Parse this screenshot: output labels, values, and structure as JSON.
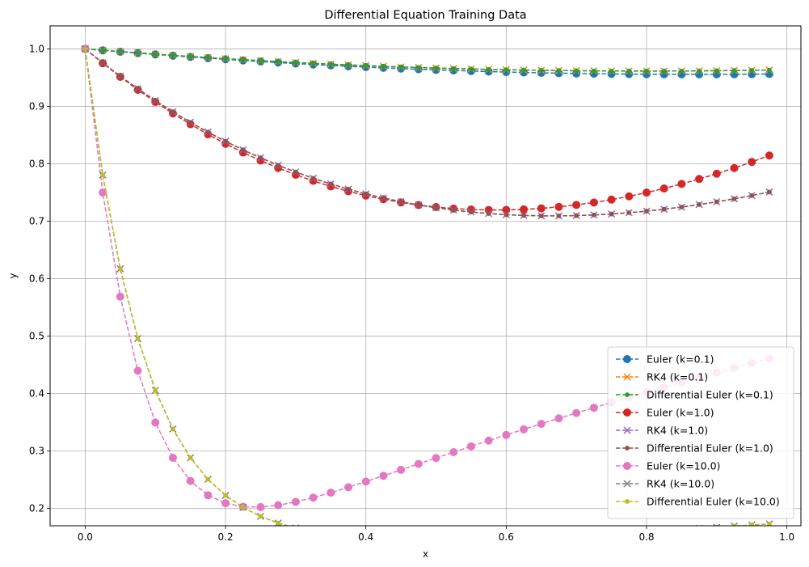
{
  "chart_data": {
    "type": "line",
    "title": "Differential Equation Training Data",
    "xlabel": "x",
    "ylabel": "y",
    "xlim": [
      -0.05,
      1.02
    ],
    "ylim": [
      0.17,
      1.04
    ],
    "xticks": [
      0.0,
      0.2,
      0.4,
      0.6,
      0.8,
      1.0
    ],
    "xtick_labels": [
      "0.0",
      "0.2",
      "0.4",
      "0.6",
      "0.8",
      "1.0"
    ],
    "yticks": [
      0.2,
      0.3,
      0.4,
      0.5,
      0.6,
      0.7,
      0.8,
      0.9,
      1.0
    ],
    "ytick_labels": [
      "0.2",
      "0.3",
      "0.4",
      "0.5",
      "0.6",
      "0.7",
      "0.8",
      "0.9",
      "1.0"
    ],
    "grid": true,
    "legend_position": "bottom-right",
    "x": [
      0.0,
      0.025,
      0.05,
      0.075,
      0.1,
      0.125,
      0.15,
      0.175,
      0.2,
      0.225,
      0.25,
      0.275,
      0.3,
      0.325,
      0.35,
      0.375,
      0.4,
      0.425,
      0.45,
      0.475,
      0.5,
      0.525,
      0.55,
      0.575,
      0.6,
      0.625,
      0.65,
      0.675,
      0.7,
      0.725,
      0.75,
      0.775,
      0.8,
      0.825,
      0.85,
      0.875,
      0.9,
      0.925,
      0.95,
      0.975
    ],
    "series": [
      {
        "name": "Euler (k=0.1)",
        "color": "#1f77b4",
        "marker": "circle",
        "values": [
          1.0,
          0.9975,
          0.995,
          0.9926,
          0.9903,
          0.9881,
          0.9859,
          0.9838,
          0.9818,
          0.9798,
          0.978,
          0.9762,
          0.9744,
          0.9728,
          0.9712,
          0.9697,
          0.9683,
          0.967,
          0.9657,
          0.9645,
          0.9634,
          0.9624,
          0.9614,
          0.9605,
          0.9597,
          0.959,
          0.9583,
          0.9577,
          0.9572,
          0.9568,
          0.9564,
          0.9561,
          0.9559,
          0.9558,
          0.9557,
          0.9557,
          0.9557,
          0.9558,
          0.956,
          0.9562
        ]
      },
      {
        "name": "RK4 (k=0.1)",
        "color": "#ff7f0e",
        "marker": "x",
        "values": [
          1.0,
          0.9976,
          0.9953,
          0.9931,
          0.9909,
          0.9888,
          0.9868,
          0.9848,
          0.983,
          0.9812,
          0.9795,
          0.9778,
          0.9763,
          0.9748,
          0.9734,
          0.9721,
          0.9709,
          0.9697,
          0.9686,
          0.9676,
          0.9667,
          0.9658,
          0.965,
          0.9643,
          0.9637,
          0.9632,
          0.9627,
          0.9623,
          0.962,
          0.9617,
          0.9615,
          0.9614,
          0.9614,
          0.9614,
          0.9615,
          0.9617,
          0.962,
          0.9623,
          0.9627,
          0.9631
        ]
      },
      {
        "name": "Differential Euler (k=0.1)",
        "color": "#2ca02c",
        "marker": "dot",
        "values": [
          1.0,
          0.9976,
          0.9953,
          0.9931,
          0.9909,
          0.9888,
          0.9868,
          0.9848,
          0.983,
          0.9812,
          0.9795,
          0.9778,
          0.9763,
          0.9748,
          0.9734,
          0.9721,
          0.9709,
          0.9697,
          0.9686,
          0.9676,
          0.9667,
          0.9658,
          0.965,
          0.9643,
          0.9637,
          0.9632,
          0.9627,
          0.9623,
          0.962,
          0.9617,
          0.9615,
          0.9614,
          0.9614,
          0.9614,
          0.9615,
          0.9617,
          0.962,
          0.9623,
          0.9627,
          0.9631
        ]
      },
      {
        "name": "Euler (k=1.0)",
        "color": "#d62728",
        "marker": "circle",
        "values": [
          1.0,
          0.975,
          0.9513,
          0.9288,
          0.9076,
          0.8876,
          0.8688,
          0.8512,
          0.8349,
          0.8196,
          0.8056,
          0.7927,
          0.7809,
          0.7702,
          0.7606,
          0.7521,
          0.7446,
          0.7382,
          0.7327,
          0.7282,
          0.7247,
          0.7221,
          0.7204,
          0.7196,
          0.7197,
          0.7206,
          0.7224,
          0.725,
          0.7284,
          0.7326,
          0.7376,
          0.7433,
          0.7498,
          0.757,
          0.7649,
          0.7735,
          0.7827,
          0.7926,
          0.8032,
          0.8144
        ]
      },
      {
        "name": "RK4 (k=1.0)",
        "color": "#9467bd",
        "marker": "x",
        "values": [
          1.0,
          0.9756,
          0.9524,
          0.9306,
          0.9099,
          0.8905,
          0.8722,
          0.8551,
          0.8391,
          0.8242,
          0.8104,
          0.7975,
          0.7857,
          0.7748,
          0.7649,
          0.7559,
          0.7477,
          0.7405,
          0.734,
          0.7284,
          0.7235,
          0.7194,
          0.716,
          0.7134,
          0.7114,
          0.7101,
          0.7094,
          0.7093,
          0.7098,
          0.7109,
          0.7126,
          0.7148,
          0.7176,
          0.7209,
          0.7247,
          0.729,
          0.7338,
          0.739,
          0.7447,
          0.7508
        ]
      },
      {
        "name": "Differential Euler (k=1.0)",
        "color": "#8c564b",
        "marker": "dot",
        "values": [
          1.0,
          0.9756,
          0.9524,
          0.9306,
          0.9099,
          0.8905,
          0.8722,
          0.8551,
          0.8391,
          0.8242,
          0.8104,
          0.7975,
          0.7857,
          0.7748,
          0.7649,
          0.7559,
          0.7477,
          0.7405,
          0.734,
          0.7284,
          0.7235,
          0.7194,
          0.716,
          0.7134,
          0.7114,
          0.7101,
          0.7094,
          0.7093,
          0.7098,
          0.7109,
          0.7126,
          0.7148,
          0.7176,
          0.7209,
          0.7247,
          0.729,
          0.7338,
          0.739,
          0.7447,
          0.7508
        ]
      },
      {
        "name": "Euler (k=10.0)",
        "color": "#e377c2",
        "marker": "circle",
        "values": [
          1.0,
          0.75,
          0.5688,
          0.4398,
          0.3496,
          0.2883,
          0.248,
          0.2231,
          0.2092,
          0.2031,
          0.2025,
          0.2057,
          0.2115,
          0.219,
          0.2276,
          0.237,
          0.2469,
          0.257,
          0.2673,
          0.2776,
          0.2879,
          0.2981,
          0.3082,
          0.3182,
          0.3281,
          0.3378,
          0.3474,
          0.3569,
          0.3662,
          0.3754,
          0.3845,
          0.3935,
          0.4023,
          0.411,
          0.4196,
          0.4281,
          0.4365,
          0.4447,
          0.4529,
          0.4609
        ]
      },
      {
        "name": "RK4 (k=10.0)",
        "color": "#7f7f7f",
        "marker": "x",
        "values": [
          1.0,
          0.7804,
          0.6172,
          0.4958,
          0.4056,
          0.3383,
          0.2882,
          0.2508,
          0.2229,
          0.202,
          0.1864,
          0.1747,
          0.166,
          0.1595,
          0.1547,
          0.1512,
          0.1488,
          0.1472,
          0.1462,
          0.1458,
          0.1458,
          0.1461,
          0.1467,
          0.1475,
          0.1485,
          0.1496,
          0.1509,
          0.1523,
          0.1537,
          0.1553,
          0.1569,
          0.1585,
          0.1602,
          0.162,
          0.1638,
          0.1656,
          0.1675,
          0.1694,
          0.1713,
          0.1732
        ]
      },
      {
        "name": "Differential Euler (k=10.0)",
        "color": "#bcbd22",
        "marker": "dot",
        "values": [
          1.0,
          0.7804,
          0.6172,
          0.4958,
          0.4056,
          0.3383,
          0.2882,
          0.2508,
          0.2229,
          0.202,
          0.1864,
          0.1747,
          0.166,
          0.1595,
          0.1547,
          0.1512,
          0.1488,
          0.1472,
          0.1462,
          0.1458,
          0.1458,
          0.1461,
          0.1467,
          0.1475,
          0.1485,
          0.1496,
          0.1509,
          0.1523,
          0.1537,
          0.1553,
          0.1569,
          0.1585,
          0.1602,
          0.162,
          0.1638,
          0.1656,
          0.1675,
          0.1694,
          0.1713,
          0.1732
        ]
      }
    ]
  }
}
